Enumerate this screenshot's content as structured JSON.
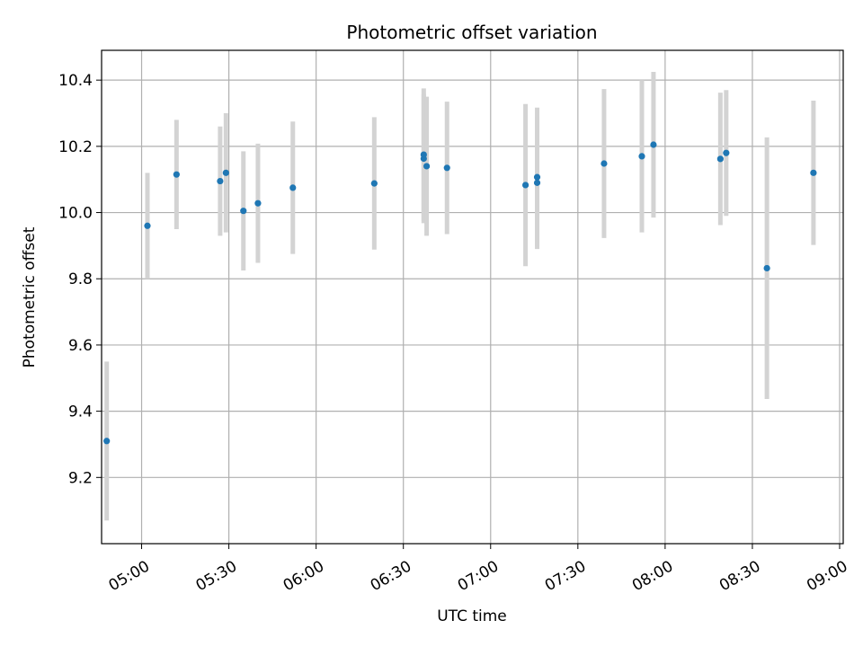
{
  "chart_data": {
    "type": "scatter",
    "title": "Photometric offset variation",
    "xlabel": "UTC time",
    "ylabel": "Photometric offset",
    "x_tick_labels": [
      "05:00",
      "05:30",
      "06:00",
      "06:30",
      "07:00",
      "07:30",
      "08:00",
      "08:30",
      "09:00"
    ],
    "y_tick_labels": [
      "9.2",
      "9.4",
      "9.6",
      "9.8",
      "10.0",
      "10.2",
      "10.4"
    ],
    "y_ticks": [
      9.2,
      9.4,
      9.6,
      9.8,
      10.0,
      10.2,
      10.4
    ],
    "xlim": [
      "04:45",
      "09:00"
    ],
    "ylim": [
      9.0,
      10.49
    ],
    "grid": true,
    "legend": "none",
    "colors": {
      "point": "#1f77b4",
      "errorbar": "#d3d3d3",
      "grid": "#b0b0b0"
    },
    "series": [
      {
        "points": [
          {
            "x": "04:48",
            "y": 9.31,
            "err": 0.24
          },
          {
            "x": "05:02",
            "y": 9.96,
            "err": 0.16
          },
          {
            "x": "05:12",
            "y": 10.115,
            "err": 0.165
          },
          {
            "x": "05:27",
            "y": 10.095,
            "err": 0.165
          },
          {
            "x": "05:29",
            "y": 10.12,
            "err": 0.18
          },
          {
            "x": "05:35",
            "y": 10.005,
            "err": 0.18
          },
          {
            "x": "05:40",
            "y": 10.028,
            "err": 0.18
          },
          {
            "x": "05:52",
            "y": 10.075,
            "err": 0.2
          },
          {
            "x": "06:20",
            "y": 10.088,
            "err": 0.2
          },
          {
            "x": "06:37",
            "y": 10.163,
            "err": 0.195
          },
          {
            "x": "06:37",
            "y": 10.175,
            "err": 0.2
          },
          {
            "x": "06:38",
            "y": 10.14,
            "err": 0.21
          },
          {
            "x": "06:45",
            "y": 10.135,
            "err": 0.2
          },
          {
            "x": "07:12",
            "y": 10.083,
            "err": 0.245
          },
          {
            "x": "07:16",
            "y": 10.107,
            "err": 0.21
          },
          {
            "x": "07:16",
            "y": 10.09,
            "err": 0.2
          },
          {
            "x": "07:39",
            "y": 10.148,
            "err": 0.225
          },
          {
            "x": "07:52",
            "y": 10.17,
            "err": 0.23
          },
          {
            "x": "07:56",
            "y": 10.205,
            "err": 0.22
          },
          {
            "x": "08:19",
            "y": 10.162,
            "err": 0.2
          },
          {
            "x": "08:21",
            "y": 10.18,
            "err": 0.19
          },
          {
            "x": "08:35",
            "y": 9.832,
            "err": 0.395
          },
          {
            "x": "08:51",
            "y": 10.12,
            "err": 0.218
          }
        ]
      }
    ]
  }
}
